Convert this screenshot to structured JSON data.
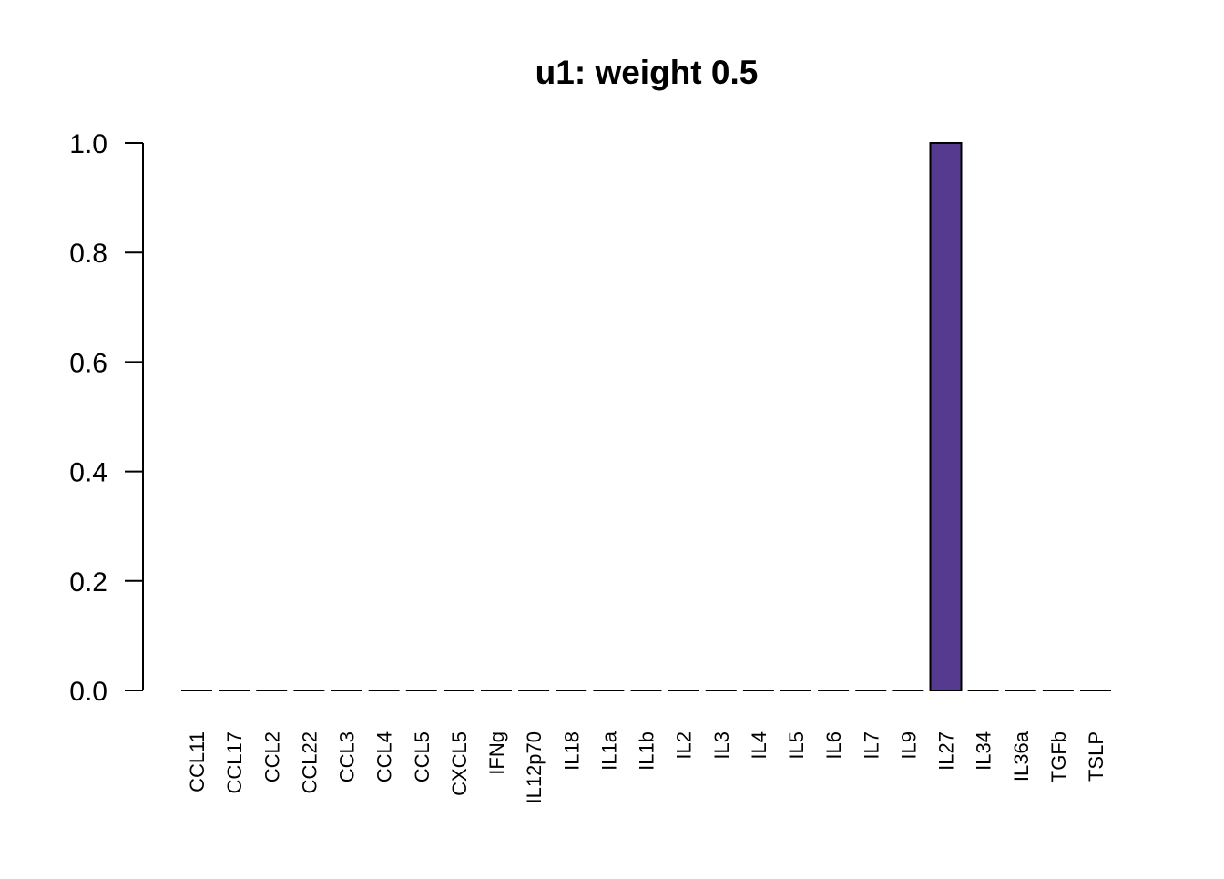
{
  "chart_data": {
    "type": "bar",
    "title": "u1: weight 0.5",
    "xlabel": "",
    "ylabel": "",
    "categories": [
      "CCL11",
      "CCL17",
      "CCL2",
      "CCL22",
      "CCL3",
      "CCL4",
      "CCL5",
      "CXCL5",
      "IFNg",
      "IL12p70",
      "IL18",
      "IL1a",
      "IL1b",
      "IL2",
      "IL3",
      "IL4",
      "IL5",
      "IL6",
      "IL7",
      "IL9",
      "IL27",
      "IL34",
      "IL36a",
      "TGFb",
      "TSLP"
    ],
    "values": [
      0,
      0,
      0,
      0,
      0,
      0,
      0,
      0,
      0,
      0,
      0,
      0,
      0,
      0,
      0,
      0,
      0,
      0,
      0,
      0,
      1.0,
      0,
      0,
      0,
      0
    ],
    "ylim": [
      0,
      1.0
    ],
    "yticks": [
      "0.0",
      "0.2",
      "0.4",
      "0.6",
      "0.8",
      "1.0"
    ],
    "bar_color": "#553A8F",
    "grid": false,
    "legend": "none"
  }
}
